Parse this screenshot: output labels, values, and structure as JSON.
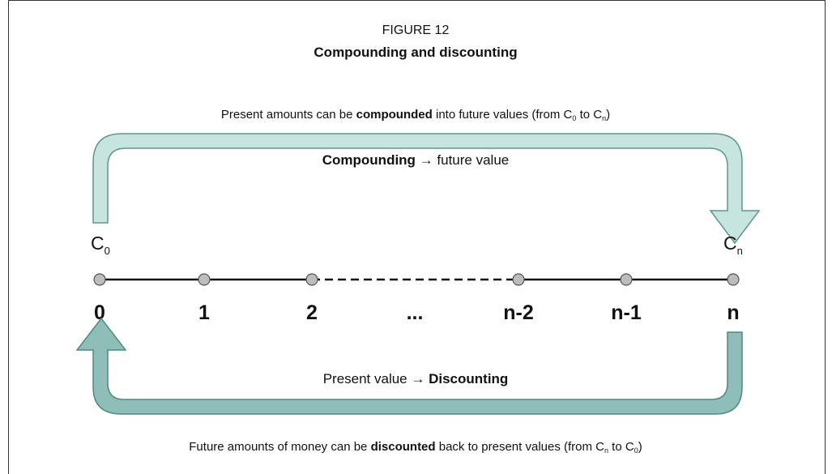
{
  "figure": {
    "number": "FIGURE 12",
    "title": "Compounding and discounting"
  },
  "top_caption": [
    "Present amounts can be ",
    "compounded",
    " into future values (from C",
    "0",
    " to C",
    "n",
    ")"
  ],
  "compounding_label": [
    "Compounding",
    " → future value"
  ],
  "discounting_label": [
    "Present value → ",
    "Discounting"
  ],
  "bottom_caption": [
    "Future amounts of money can be ",
    "discounted",
    " back to present values (from C",
    "n",
    " to C",
    "0",
    ")"
  ],
  "start_amount": {
    "letter": "C",
    "sub": "0"
  },
  "end_amount": {
    "letter": "C",
    "sub": "n"
  },
  "timeline": [
    "0",
    "1",
    "2",
    "...",
    "n-2",
    "n-1",
    "n"
  ]
}
